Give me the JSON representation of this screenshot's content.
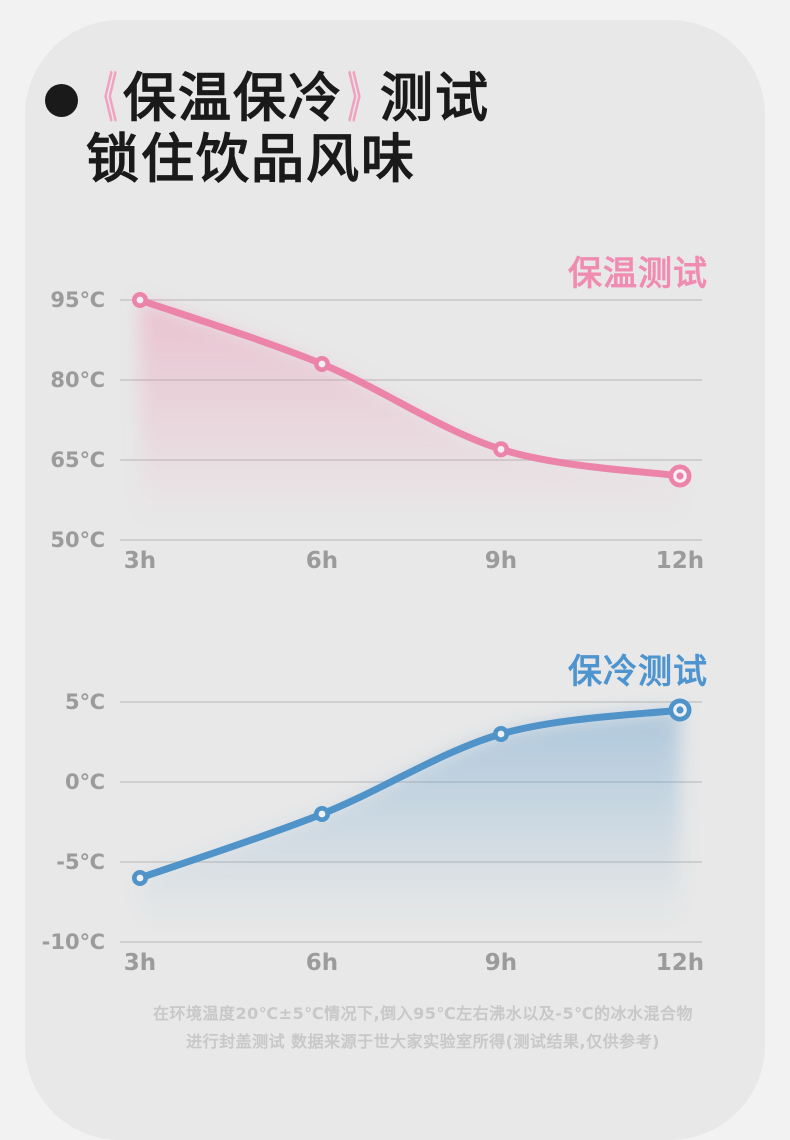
{
  "header": {
    "bullet_icon": "●",
    "bracket_open": "《",
    "highlight": "保温保冷",
    "bracket_close": "》",
    "line1_rest": "测试",
    "line2": "锁住饮品风味"
  },
  "colors": {
    "page_bg": "#f2f2f2",
    "card_bg": "#e8e8e8",
    "title_text": "#1a1a1a",
    "bracket_pink": "#f0a2c0",
    "hot_line": "#ec84a9",
    "hot_title": "#f08cb0",
    "cold_line": "#4f93c8",
    "cold_title": "#4e95d0",
    "grid": "#cfcfcf",
    "axis_text": "#9b9b9b",
    "footer_text": "#c8c8c8"
  },
  "chart_data": [
    {
      "type": "line",
      "title": "保温测试",
      "categories": [
        "3h",
        "6h",
        "9h",
        "12h"
      ],
      "series": [
        {
          "name": "保温测试",
          "values": [
            95,
            83,
            67,
            62
          ]
        }
      ],
      "unit": "℃",
      "y_ticks": [
        {
          "value": 95,
          "label": "95℃"
        },
        {
          "value": 80,
          "label": "80℃"
        },
        {
          "value": 65,
          "label": "65℃"
        },
        {
          "value": 50,
          "label": "50℃"
        }
      ],
      "ylim": [
        50,
        95
      ],
      "xlabel": "",
      "ylabel": "",
      "grid": true,
      "legend_position": "none",
      "line_color": "#ec84a9",
      "title_color": "#f08cb0",
      "marker_center_color": "#f5eef2"
    },
    {
      "type": "line",
      "title": "保冷测试",
      "categories": [
        "3h",
        "6h",
        "9h",
        "12h"
      ],
      "series": [
        {
          "name": "保冷测试",
          "values": [
            -6,
            -2,
            3,
            4.5
          ]
        }
      ],
      "unit": "℃",
      "y_ticks": [
        {
          "value": 5,
          "label": "5℃"
        },
        {
          "value": 0,
          "label": "0℃"
        },
        {
          "value": -5,
          "label": "-5℃"
        },
        {
          "value": -10,
          "label": "-10℃"
        }
      ],
      "ylim": [
        -10,
        5
      ],
      "xlabel": "",
      "ylabel": "",
      "grid": true,
      "legend_position": "none",
      "line_color": "#4f93c8",
      "title_color": "#4e95d0",
      "marker_center_color": "#eef2f6"
    }
  ],
  "footer": {
    "line1": "在环境温度20℃±5℃情况下,倒入95℃左右沸水以及-5℃的冰水混合物",
    "line2": "进行封盖测试 数据来源于世大家实验室所得(测试结果,仅供参考)"
  }
}
